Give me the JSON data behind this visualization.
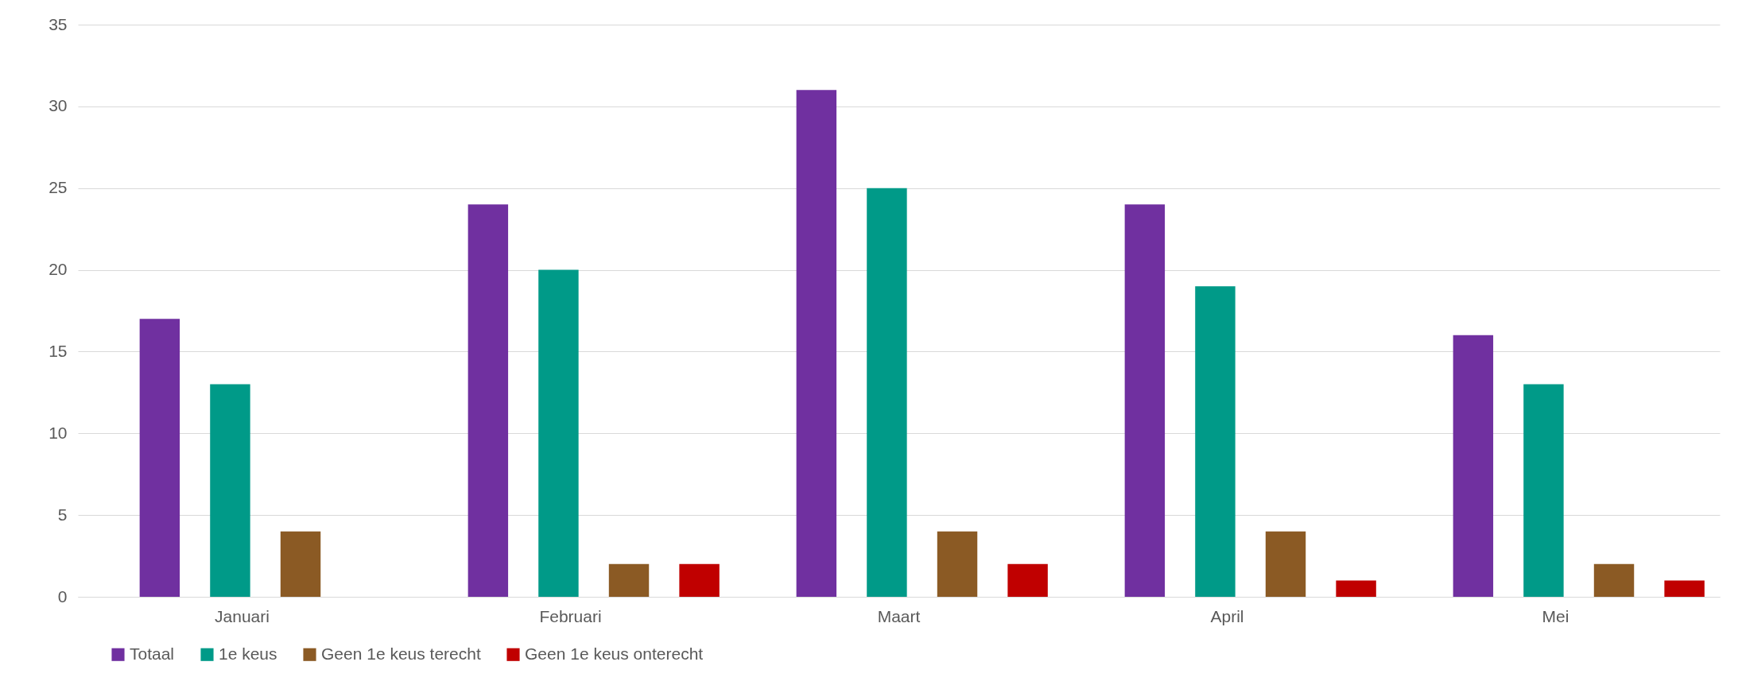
{
  "chart_data": {
    "type": "bar",
    "categories": [
      "Januari",
      "Februari",
      "Maart",
      "April",
      "Mei"
    ],
    "series": [
      {
        "name": "Totaal",
        "color": "#7030a0",
        "values": [
          17,
          24,
          31,
          24,
          16
        ]
      },
      {
        "name": "1e keus",
        "color": "#009a88",
        "values": [
          13,
          20,
          25,
          19,
          13
        ]
      },
      {
        "name": "Geen 1e keus terecht",
        "color": "#8b5a24",
        "values": [
          4,
          2,
          4,
          4,
          2
        ]
      },
      {
        "name": "Geen 1e keus onterecht",
        "color": "#c00000",
        "values": [
          null,
          2,
          2,
          1,
          1
        ]
      }
    ],
    "ylim": [
      0,
      35
    ],
    "yticks": [
      0,
      5,
      10,
      15,
      20,
      25,
      30,
      35
    ],
    "grid": "y",
    "legend": "bottom left"
  }
}
